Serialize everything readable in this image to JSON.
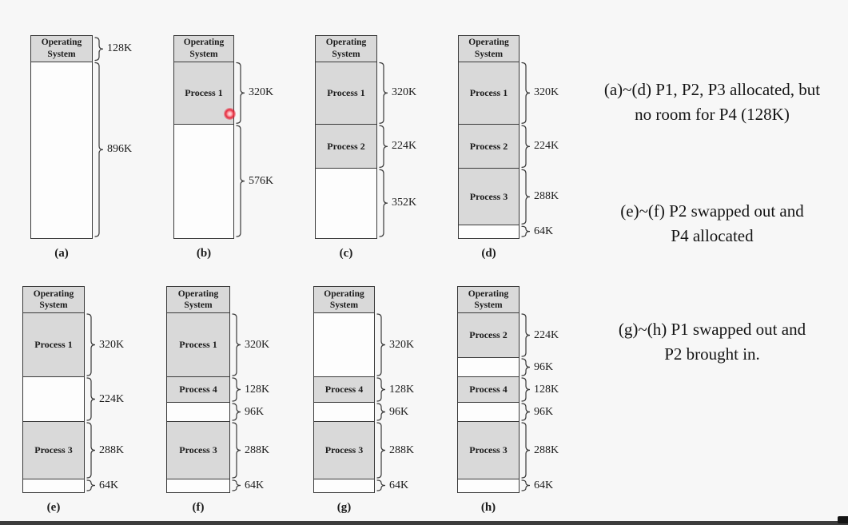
{
  "colors": {
    "background": "#f7f7f7",
    "block_fill": "#d9d9d9",
    "free_fill": "#fdfdfd",
    "line": "#3a3a3a",
    "laser_red": "#e6293c",
    "bottom_bar": "#3c3c3c"
  },
  "diagrams": [
    {
      "tag": "(a)",
      "blocks": [
        {
          "label": "Operating System",
          "size_k": 128,
          "filled": true,
          "os": true,
          "brace": "128K"
        },
        {
          "label": "",
          "size_k": 896,
          "filled": false,
          "brace": "896K"
        }
      ]
    },
    {
      "tag": "(b)",
      "blocks": [
        {
          "label": "Operating System",
          "size_k": 128,
          "filled": true,
          "os": true,
          "brace": null
        },
        {
          "label": "Process 1",
          "size_k": 320,
          "filled": true,
          "brace": "320K"
        },
        {
          "label": "",
          "size_k": 576,
          "filled": false,
          "brace": "576K"
        }
      ]
    },
    {
      "tag": "(c)",
      "blocks": [
        {
          "label": "Operating System",
          "size_k": 128,
          "filled": true,
          "os": true,
          "brace": null
        },
        {
          "label": "Process 1",
          "size_k": 320,
          "filled": true,
          "brace": "320K"
        },
        {
          "label": "Process 2",
          "size_k": 224,
          "filled": true,
          "brace": "224K"
        },
        {
          "label": "",
          "size_k": 352,
          "filled": false,
          "brace": "352K"
        }
      ]
    },
    {
      "tag": "(d)",
      "blocks": [
        {
          "label": "Operating System",
          "size_k": 128,
          "filled": true,
          "os": true,
          "brace": null
        },
        {
          "label": "Process 1",
          "size_k": 320,
          "filled": true,
          "brace": "320K"
        },
        {
          "label": "Process 2",
          "size_k": 224,
          "filled": true,
          "brace": "224K"
        },
        {
          "label": "Process 3",
          "size_k": 288,
          "filled": true,
          "brace": "288K"
        },
        {
          "label": "",
          "size_k": 64,
          "filled": false,
          "brace": "64K"
        }
      ]
    },
    {
      "tag": "(e)",
      "blocks": [
        {
          "label": "Operating System",
          "size_k": 128,
          "filled": true,
          "os": true,
          "brace": null
        },
        {
          "label": "Process 1",
          "size_k": 320,
          "filled": true,
          "brace": "320K"
        },
        {
          "label": "",
          "size_k": 224,
          "filled": false,
          "brace": "224K"
        },
        {
          "label": "Process 3",
          "size_k": 288,
          "filled": true,
          "brace": "288K"
        },
        {
          "label": "",
          "size_k": 64,
          "filled": false,
          "brace": "64K"
        }
      ]
    },
    {
      "tag": "(f)",
      "blocks": [
        {
          "label": "Operating System",
          "size_k": 128,
          "filled": true,
          "os": true,
          "brace": null
        },
        {
          "label": "Process 1",
          "size_k": 320,
          "filled": true,
          "brace": "320K"
        },
        {
          "label": "Process 4",
          "size_k": 128,
          "filled": true,
          "brace": "128K"
        },
        {
          "label": "",
          "size_k": 96,
          "filled": false,
          "brace": "96K"
        },
        {
          "label": "Process 3",
          "size_k": 288,
          "filled": true,
          "brace": "288K"
        },
        {
          "label": "",
          "size_k": 64,
          "filled": false,
          "brace": "64K"
        }
      ]
    },
    {
      "tag": "(g)",
      "blocks": [
        {
          "label": "Operating System",
          "size_k": 128,
          "filled": true,
          "os": true,
          "brace": null
        },
        {
          "label": "",
          "size_k": 320,
          "filled": false,
          "brace": "320K"
        },
        {
          "label": "Process 4",
          "size_k": 128,
          "filled": true,
          "brace": "128K"
        },
        {
          "label": "",
          "size_k": 96,
          "filled": false,
          "brace": "96K"
        },
        {
          "label": "Process 3",
          "size_k": 288,
          "filled": true,
          "brace": "288K"
        },
        {
          "label": "",
          "size_k": 64,
          "filled": false,
          "brace": "64K"
        }
      ]
    },
    {
      "tag": "(h)",
      "blocks": [
        {
          "label": "Operating System",
          "size_k": 128,
          "filled": true,
          "os": true,
          "brace": null
        },
        {
          "label": "Process 2",
          "size_k": 224,
          "filled": true,
          "brace": "224K"
        },
        {
          "label": "",
          "size_k": 96,
          "filled": false,
          "brace": "96K"
        },
        {
          "label": "Process 4",
          "size_k": 128,
          "filled": true,
          "brace": "128K"
        },
        {
          "label": "",
          "size_k": 96,
          "filled": false,
          "brace": "96K"
        },
        {
          "label": "Process 3",
          "size_k": 288,
          "filled": true,
          "brace": "288K"
        },
        {
          "label": "",
          "size_k": 64,
          "filled": false,
          "brace": "64K"
        }
      ]
    }
  ],
  "annotations": [
    {
      "line1": "(a)~(d) P1, P2, P3 allocated, but",
      "line2": "no room for P4 (128K)"
    },
    {
      "line1": "(e)~(f) P2 swapped out and",
      "line2": "P4 allocated"
    },
    {
      "line1": "(g)~(h) P1 swapped out and",
      "line2": "P2 brought in."
    }
  ],
  "laser_pointer": {
    "on_diagram": "(b)",
    "color": "#e6293c"
  }
}
